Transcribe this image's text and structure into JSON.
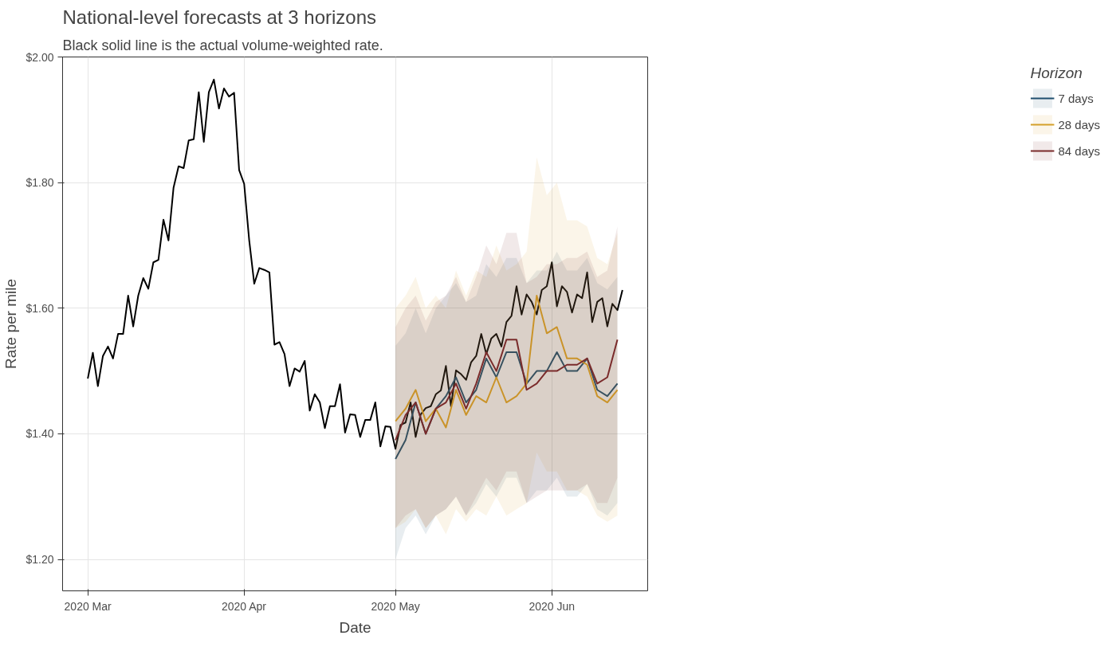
{
  "chart_data": {
    "type": "line",
    "title": "National-level forecasts at 3 horizons",
    "subtitle": "Black solid line is the actual volume-weighted rate.",
    "xlabel": "Date",
    "ylabel": "Rate per mile",
    "legend_title": "Horizon",
    "xlim": [
      "2020-02-25",
      "2020-06-20"
    ],
    "ylim": [
      1.15,
      2.0
    ],
    "xticks": [
      {
        "value": "2020-03-01",
        "label": "2020 Mar"
      },
      {
        "value": "2020-04-01",
        "label": "2020 Apr"
      },
      {
        "value": "2020-05-01",
        "label": "2020 May"
      },
      {
        "value": "2020-06-01",
        "label": "2020 Jun"
      }
    ],
    "yticks": [
      {
        "value": 1.2,
        "label": "$1.20"
      },
      {
        "value": 1.4,
        "label": "$1.40"
      },
      {
        "value": 1.6,
        "label": "$1.60"
      },
      {
        "value": 1.8,
        "label": "$1.80"
      },
      {
        "value": 2.0,
        "label": "$2.00"
      }
    ],
    "grid": true,
    "legend": "right",
    "line_style": "solid",
    "marker": "none",
    "series": [
      {
        "color": "#000000",
        "x": [
          "2020-03-01",
          "2020-03-02",
          "2020-03-03",
          "2020-03-04",
          "2020-03-05",
          "2020-03-06",
          "2020-03-07",
          "2020-03-08",
          "2020-03-09",
          "2020-03-10",
          "2020-03-11",
          "2020-03-12",
          "2020-03-13",
          "2020-03-14",
          "2020-03-15",
          "2020-03-16",
          "2020-03-17",
          "2020-03-18",
          "2020-03-19",
          "2020-03-20",
          "2020-03-21",
          "2020-03-22",
          "2020-03-23",
          "2020-03-24",
          "2020-03-25",
          "2020-03-26",
          "2020-03-27",
          "2020-03-28",
          "2020-03-29",
          "2020-03-30",
          "2020-03-31",
          "2020-04-01",
          "2020-04-02",
          "2020-04-03",
          "2020-04-04",
          "2020-04-05",
          "2020-04-06",
          "2020-04-07",
          "2020-04-08",
          "2020-04-09",
          "2020-04-10",
          "2020-04-11",
          "2020-04-12",
          "2020-04-13",
          "2020-04-14",
          "2020-04-15",
          "2020-04-16",
          "2020-04-17",
          "2020-04-18",
          "2020-04-19",
          "2020-04-20",
          "2020-04-21",
          "2020-04-22",
          "2020-04-23",
          "2020-04-24",
          "2020-04-25",
          "2020-04-26",
          "2020-04-27",
          "2020-04-28",
          "2020-04-29",
          "2020-04-30",
          "2020-05-01",
          "2020-05-02",
          "2020-05-03",
          "2020-05-04",
          "2020-05-05",
          "2020-05-06",
          "2020-05-07",
          "2020-05-08",
          "2020-05-09",
          "2020-05-10",
          "2020-05-11",
          "2020-05-12",
          "2020-05-13",
          "2020-05-14",
          "2020-05-15",
          "2020-05-16",
          "2020-05-17",
          "2020-05-18",
          "2020-05-19",
          "2020-05-20",
          "2020-05-21",
          "2020-05-22",
          "2020-05-23",
          "2020-05-24",
          "2020-05-25",
          "2020-05-26",
          "2020-05-27",
          "2020-05-28",
          "2020-05-29",
          "2020-05-30",
          "2020-05-31",
          "2020-06-01",
          "2020-06-02",
          "2020-06-03",
          "2020-06-04",
          "2020-06-05",
          "2020-06-06",
          "2020-06-07",
          "2020-06-08",
          "2020-06-09",
          "2020-06-10",
          "2020-06-11",
          "2020-06-12",
          "2020-06-13",
          "2020-06-14",
          "2020-06-15"
        ],
        "values": [
          1.488,
          1.529,
          1.476,
          1.524,
          1.539,
          1.52,
          1.559,
          1.559,
          1.62,
          1.571,
          1.62,
          1.648,
          1.631,
          1.673,
          1.677,
          1.741,
          1.708,
          1.792,
          1.826,
          1.823,
          1.867,
          1.869,
          1.944,
          1.865,
          1.944,
          1.964,
          1.918,
          1.95,
          1.937,
          1.943,
          1.82,
          1.798,
          1.708,
          1.639,
          1.664,
          1.661,
          1.657,
          1.542,
          1.546,
          1.527,
          1.476,
          1.504,
          1.499,
          1.516,
          1.437,
          1.463,
          1.45,
          1.409,
          1.444,
          1.444,
          1.479,
          1.402,
          1.431,
          1.43,
          1.395,
          1.422,
          1.422,
          1.45,
          1.38,
          1.412,
          1.411,
          1.376,
          1.414,
          1.418,
          1.45,
          1.395,
          1.431,
          1.441,
          1.444,
          1.463,
          1.469,
          1.508,
          1.444,
          1.501,
          1.495,
          1.486,
          1.514,
          1.524,
          1.559,
          1.527,
          1.552,
          1.559,
          1.539,
          1.578,
          1.588,
          1.635,
          1.59,
          1.622,
          1.61,
          1.59,
          1.629,
          1.635,
          1.673,
          1.603,
          1.635,
          1.626,
          1.593,
          1.622,
          1.616,
          1.657,
          1.578,
          1.61,
          1.616,
          1.571,
          1.607,
          1.597,
          1.629
        ]
      },
      {
        "name": "7 days",
        "color": "#1f4e6e",
        "x": [
          "2020-05-01",
          "2020-05-03",
          "2020-05-05",
          "2020-05-07",
          "2020-05-09",
          "2020-05-11",
          "2020-05-13",
          "2020-05-15",
          "2020-05-17",
          "2020-05-19",
          "2020-05-21",
          "2020-05-23",
          "2020-05-25",
          "2020-05-27",
          "2020-05-29",
          "2020-05-31",
          "2020-06-02",
          "2020-06-04",
          "2020-06-06",
          "2020-06-08",
          "2020-06-10",
          "2020-06-12",
          "2020-06-14"
        ],
        "values": [
          1.36,
          1.39,
          1.45,
          1.4,
          1.44,
          1.46,
          1.49,
          1.45,
          1.47,
          1.52,
          1.49,
          1.53,
          1.53,
          1.48,
          1.5,
          1.5,
          1.53,
          1.5,
          1.5,
          1.52,
          1.47,
          1.46,
          1.48
        ],
        "lower": [
          1.2,
          1.25,
          1.27,
          1.24,
          1.27,
          1.28,
          1.3,
          1.27,
          1.29,
          1.32,
          1.3,
          1.33,
          1.33,
          1.29,
          1.31,
          1.31,
          1.33,
          1.3,
          1.3,
          1.32,
          1.28,
          1.27,
          1.29
        ],
        "upper": [
          1.54,
          1.56,
          1.6,
          1.56,
          1.6,
          1.62,
          1.64,
          1.61,
          1.62,
          1.67,
          1.65,
          1.68,
          1.68,
          1.64,
          1.66,
          1.66,
          1.69,
          1.66,
          1.66,
          1.68,
          1.64,
          1.63,
          1.65
        ]
      },
      {
        "name": "28 days",
        "color": "#d4a02a",
        "x": [
          "2020-05-01",
          "2020-05-03",
          "2020-05-05",
          "2020-05-07",
          "2020-05-09",
          "2020-05-11",
          "2020-05-13",
          "2020-05-15",
          "2020-05-17",
          "2020-05-19",
          "2020-05-21",
          "2020-05-23",
          "2020-05-25",
          "2020-05-27",
          "2020-05-29",
          "2020-05-31",
          "2020-06-02",
          "2020-06-04",
          "2020-06-06",
          "2020-06-08",
          "2020-06-10",
          "2020-06-12",
          "2020-06-14"
        ],
        "values": [
          1.42,
          1.44,
          1.47,
          1.42,
          1.44,
          1.41,
          1.47,
          1.43,
          1.46,
          1.45,
          1.49,
          1.45,
          1.46,
          1.48,
          1.62,
          1.56,
          1.57,
          1.52,
          1.52,
          1.51,
          1.46,
          1.45,
          1.47
        ],
        "lower": [
          1.25,
          1.26,
          1.28,
          1.25,
          1.27,
          1.24,
          1.28,
          1.26,
          1.28,
          1.27,
          1.3,
          1.27,
          1.28,
          1.29,
          1.37,
          1.34,
          1.34,
          1.31,
          1.31,
          1.3,
          1.27,
          1.26,
          1.27
        ],
        "upper": [
          1.6,
          1.62,
          1.65,
          1.6,
          1.62,
          1.6,
          1.66,
          1.62,
          1.66,
          1.65,
          1.7,
          1.66,
          1.67,
          1.69,
          1.84,
          1.78,
          1.8,
          1.74,
          1.74,
          1.73,
          1.68,
          1.67,
          1.72
        ]
      },
      {
        "name": "84 days",
        "color": "#7a2b2b",
        "x": [
          "2020-05-01",
          "2020-05-03",
          "2020-05-05",
          "2020-05-07",
          "2020-05-09",
          "2020-05-11",
          "2020-05-13",
          "2020-05-15",
          "2020-05-17",
          "2020-05-19",
          "2020-05-21",
          "2020-05-23",
          "2020-05-25",
          "2020-05-27",
          "2020-05-29",
          "2020-05-31",
          "2020-06-02",
          "2020-06-04",
          "2020-06-06",
          "2020-06-08",
          "2020-06-10",
          "2020-06-12",
          "2020-06-14"
        ],
        "values": [
          1.39,
          1.43,
          1.45,
          1.4,
          1.44,
          1.45,
          1.48,
          1.44,
          1.48,
          1.53,
          1.5,
          1.55,
          1.55,
          1.47,
          1.48,
          1.5,
          1.5,
          1.51,
          1.51,
          1.52,
          1.48,
          1.49,
          1.55
        ],
        "lower": [
          1.25,
          1.27,
          1.28,
          1.25,
          1.27,
          1.28,
          1.3,
          1.27,
          1.3,
          1.33,
          1.31,
          1.34,
          1.34,
          1.29,
          1.3,
          1.31,
          1.31,
          1.31,
          1.31,
          1.32,
          1.29,
          1.29,
          1.33
        ],
        "upper": [
          1.57,
          1.6,
          1.62,
          1.58,
          1.61,
          1.62,
          1.65,
          1.61,
          1.65,
          1.7,
          1.67,
          1.72,
          1.72,
          1.64,
          1.65,
          1.67,
          1.67,
          1.68,
          1.68,
          1.69,
          1.65,
          1.66,
          1.73
        ]
      }
    ]
  }
}
